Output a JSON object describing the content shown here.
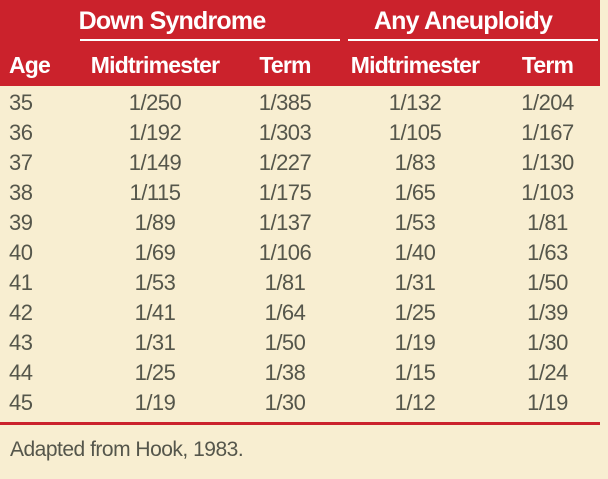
{
  "colors": {
    "header_red": "#cb222c",
    "background_cream": "#f8eed1",
    "header_text": "#ffffff",
    "body_text": "#55564b"
  },
  "table": {
    "group_headers": {
      "down_syndrome": "Down Syndrome",
      "any_aneuploidy": "Any Aneuploidy"
    },
    "columns": {
      "age": "Age",
      "ds_midtrimester": "Midtrimester",
      "ds_term": "Term",
      "aa_midtrimester": "Midtrimester",
      "aa_term": "Term"
    },
    "rows": [
      {
        "age": "35",
        "cells": [
          "1/250",
          "1/385",
          "1/132",
          "1/204"
        ]
      },
      {
        "age": "36",
        "cells": [
          "1/192",
          "1/303",
          "1/105",
          "1/167"
        ]
      },
      {
        "age": "37",
        "cells": [
          "1/149",
          "1/227",
          "1/83",
          "1/130"
        ]
      },
      {
        "age": "38",
        "cells": [
          "1/115",
          "1/175",
          "1/65",
          "1/103"
        ]
      },
      {
        "age": "39",
        "cells": [
          "1/89",
          "1/137",
          "1/53",
          "1/81"
        ]
      },
      {
        "age": "40",
        "cells": [
          "1/69",
          "1/106",
          "1/40",
          "1/63"
        ]
      },
      {
        "age": "41",
        "cells": [
          "1/53",
          "1/81",
          "1/31",
          "1/50"
        ]
      },
      {
        "age": "42",
        "cells": [
          "1/41",
          "1/64",
          "1/25",
          "1/39"
        ]
      },
      {
        "age": "43",
        "cells": [
          "1/31",
          "1/50",
          "1/19",
          "1/30"
        ]
      },
      {
        "age": "44",
        "cells": [
          "1/25",
          "1/38",
          "1/15",
          "1/24"
        ]
      },
      {
        "age": "45",
        "cells": [
          "1/19",
          "1/30",
          "1/12",
          "1/19"
        ]
      }
    ],
    "footnote": "Adapted from Hook, 1983."
  }
}
